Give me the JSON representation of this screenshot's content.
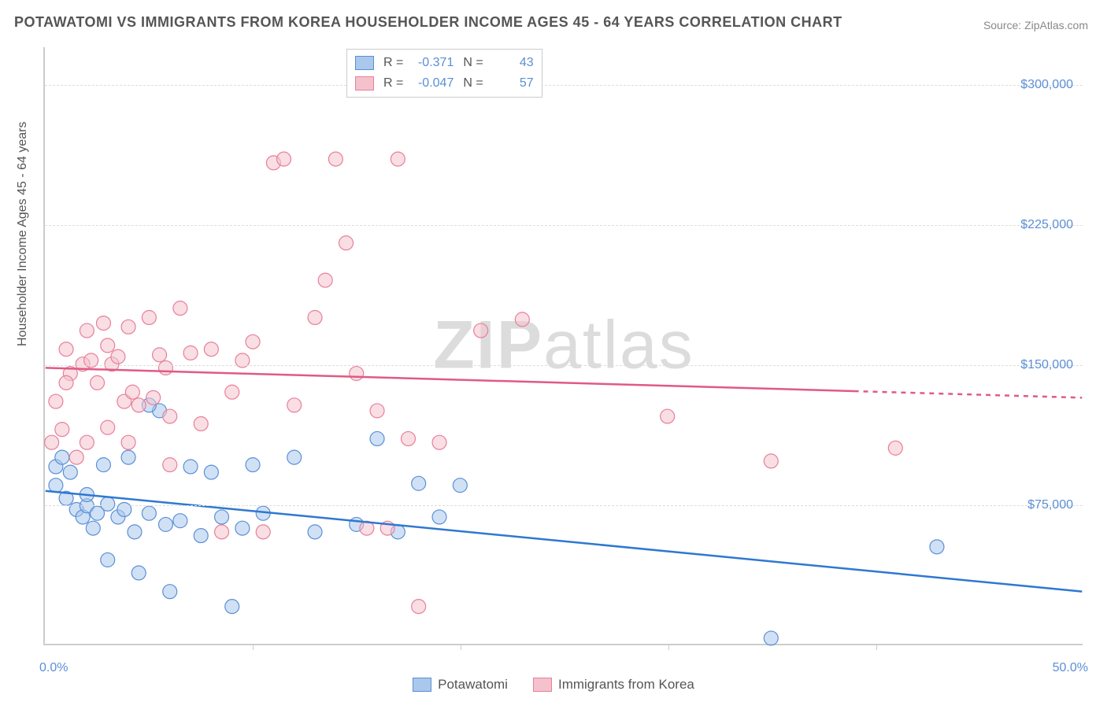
{
  "title": "POTAWATOMI VS IMMIGRANTS FROM KOREA HOUSEHOLDER INCOME AGES 45 - 64 YEARS CORRELATION CHART",
  "source": "Source: ZipAtlas.com",
  "watermark_a": "ZIP",
  "watermark_b": "atlas",
  "chart": {
    "type": "scatter",
    "y_axis_title": "Householder Income Ages 45 - 64 years",
    "xlim": [
      0,
      50
    ],
    "ylim": [
      0,
      320000
    ],
    "x_ticks_minor": [
      10,
      20,
      30,
      40
    ],
    "x_tick_labels": [
      {
        "pos": 0,
        "label": "0.0%"
      },
      {
        "pos": 50,
        "label": "50.0%"
      }
    ],
    "y_tick_labels": [
      {
        "pos": 75000,
        "label": "$75,000"
      },
      {
        "pos": 150000,
        "label": "$150,000"
      },
      {
        "pos": 225000,
        "label": "$225,000"
      },
      {
        "pos": 300000,
        "label": "$300,000"
      }
    ],
    "grid_color": "#dddddd",
    "background_color": "#ffffff",
    "marker_radius": 9,
    "marker_opacity": 0.55,
    "line_width": 2.5,
    "series": [
      {
        "name": "Potawatomi",
        "color_fill": "#a9c8ec",
        "color_stroke": "#5b8fd6",
        "line_color": "#2f78d0",
        "r_label": "R =",
        "r_value": "-0.371",
        "n_label": "N =",
        "n_value": "43",
        "trend": {
          "x1": 0,
          "y1": 82000,
          "x2": 50,
          "y2": 28000,
          "dash_from_x": 50
        },
        "points": [
          [
            0.5,
            95000
          ],
          [
            0.8,
            100000
          ],
          [
            0.5,
            85000
          ],
          [
            1.0,
            78000
          ],
          [
            1.2,
            92000
          ],
          [
            1.5,
            72000
          ],
          [
            1.8,
            68000
          ],
          [
            2.0,
            74000
          ],
          [
            2.0,
            80000
          ],
          [
            2.3,
            62000
          ],
          [
            2.5,
            70000
          ],
          [
            2.8,
            96000
          ],
          [
            3.0,
            75000
          ],
          [
            3.0,
            45000
          ],
          [
            3.5,
            68000
          ],
          [
            3.8,
            72000
          ],
          [
            4.0,
            100000
          ],
          [
            4.3,
            60000
          ],
          [
            4.5,
            38000
          ],
          [
            5.0,
            70000
          ],
          [
            5.5,
            125000
          ],
          [
            5.8,
            64000
          ],
          [
            6.0,
            28000
          ],
          [
            6.5,
            66000
          ],
          [
            7.0,
            95000
          ],
          [
            7.5,
            58000
          ],
          [
            8.0,
            92000
          ],
          [
            8.5,
            68000
          ],
          [
            9.0,
            20000
          ],
          [
            9.5,
            62000
          ],
          [
            10.0,
            96000
          ],
          [
            10.5,
            70000
          ],
          [
            12.0,
            100000
          ],
          [
            13.0,
            60000
          ],
          [
            15.0,
            64000
          ],
          [
            16.0,
            110000
          ],
          [
            17.0,
            60000
          ],
          [
            18.0,
            86000
          ],
          [
            19.0,
            68000
          ],
          [
            20.0,
            85000
          ],
          [
            35.0,
            3000
          ],
          [
            43.0,
            52000
          ],
          [
            5.0,
            128000
          ]
        ]
      },
      {
        "name": "Immigrants from Korea",
        "color_fill": "#f4c2cd",
        "color_stroke": "#e87f9a",
        "line_color": "#e05a84",
        "r_label": "R =",
        "r_value": "-0.047",
        "n_label": "N =",
        "n_value": "57",
        "trend": {
          "x1": 0,
          "y1": 148000,
          "x2": 50,
          "y2": 132000,
          "dash_from_x": 39
        },
        "points": [
          [
            0.3,
            108000
          ],
          [
            0.5,
            130000
          ],
          [
            0.8,
            115000
          ],
          [
            1.0,
            158000
          ],
          [
            1.2,
            145000
          ],
          [
            1.5,
            100000
          ],
          [
            1.8,
            150000
          ],
          [
            2.0,
            108000
          ],
          [
            2.2,
            152000
          ],
          [
            2.5,
            140000
          ],
          [
            2.8,
            172000
          ],
          [
            3.0,
            160000
          ],
          [
            3.2,
            150000
          ],
          [
            3.5,
            154000
          ],
          [
            3.8,
            130000
          ],
          [
            4.0,
            170000
          ],
          [
            4.2,
            135000
          ],
          [
            4.5,
            128000
          ],
          [
            5.0,
            175000
          ],
          [
            5.2,
            132000
          ],
          [
            5.5,
            155000
          ],
          [
            5.8,
            148000
          ],
          [
            6.0,
            122000
          ],
          [
            6.5,
            180000
          ],
          [
            7.0,
            156000
          ],
          [
            7.5,
            118000
          ],
          [
            8.0,
            158000
          ],
          [
            8.5,
            60000
          ],
          [
            9.0,
            135000
          ],
          [
            9.5,
            152000
          ],
          [
            10.0,
            162000
          ],
          [
            10.5,
            60000
          ],
          [
            11.0,
            258000
          ],
          [
            11.5,
            260000
          ],
          [
            12.0,
            128000
          ],
          [
            13.0,
            175000
          ],
          [
            13.5,
            195000
          ],
          [
            14.0,
            260000
          ],
          [
            14.5,
            215000
          ],
          [
            15.0,
            145000
          ],
          [
            15.5,
            62000
          ],
          [
            16.0,
            125000
          ],
          [
            16.5,
            62000
          ],
          [
            17.0,
            260000
          ],
          [
            17.5,
            110000
          ],
          [
            18.0,
            20000
          ],
          [
            19.0,
            108000
          ],
          [
            21.0,
            168000
          ],
          [
            23.0,
            174000
          ],
          [
            30.0,
            122000
          ],
          [
            35.0,
            98000
          ],
          [
            41.0,
            105000
          ],
          [
            2.0,
            168000
          ],
          [
            3.0,
            116000
          ],
          [
            6.0,
            96000
          ],
          [
            1.0,
            140000
          ],
          [
            4.0,
            108000
          ]
        ]
      }
    ],
    "legend_bottom": [
      {
        "swatch_fill": "#a9c8ec",
        "swatch_stroke": "#5b8fd6",
        "label": "Potawatomi"
      },
      {
        "swatch_fill": "#f4c2cd",
        "swatch_stroke": "#e87f9a",
        "label": "Immigrants from Korea"
      }
    ]
  }
}
